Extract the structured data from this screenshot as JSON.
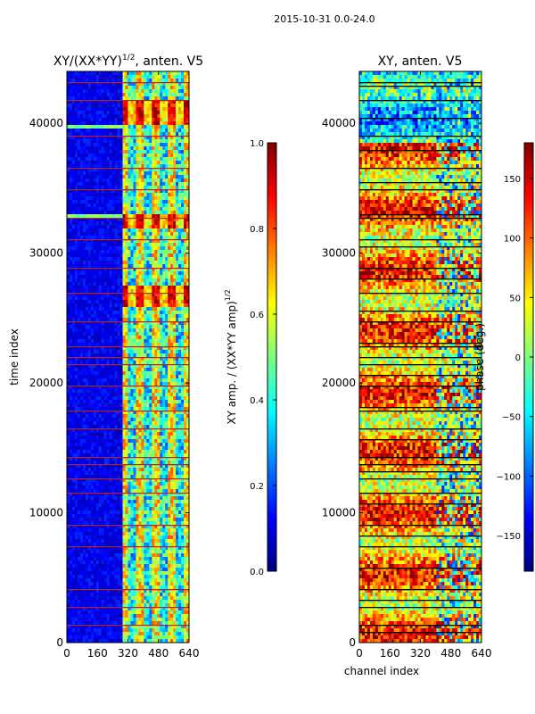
{
  "figure_title": "2015-10-31 0.0-24.0",
  "colors": {
    "jet": [
      "#00007f",
      "#0000ff",
      "#007fff",
      "#00ffff",
      "#7fff7f",
      "#ffff00",
      "#ff7f00",
      "#ff0000",
      "#7f0000"
    ],
    "frame": "#000000"
  },
  "chart_data": [
    {
      "type": "heatmap",
      "title": "XY/(XX*YY)$^{1/2}$, anten. V5",
      "title_parts": {
        "base": "XY/(XX*YY)",
        "sup": "1/2",
        "tail": ", anten. V5"
      },
      "xlabel": "",
      "ylabel": "time index",
      "xlim": [
        0,
        640
      ],
      "ylim": [
        0,
        44000
      ],
      "xticks": [
        "0",
        "160",
        "320",
        "480",
        "640"
      ],
      "yticks": [
        "0",
        "10000",
        "20000",
        "30000",
        "40000"
      ],
      "colorbar": {
        "label": "XY amp. / (XX*YY amp)$^{1/2}$",
        "label_parts": {
          "base": "XY amp. / (XX*YY amp)",
          "sup": "1/2"
        },
        "range": [
          0.0,
          1.0
        ],
        "ticks": [
          "0.0",
          "0.2",
          "0.4",
          "0.6",
          "0.8",
          "1.0"
        ]
      }
    },
    {
      "type": "heatmap",
      "title": "XY, anten. V5",
      "xlabel": "channel index",
      "ylabel": "",
      "xlim": [
        0,
        640
      ],
      "ylim": [
        0,
        44000
      ],
      "xticks": [
        "0",
        "160",
        "320",
        "480",
        "640"
      ],
      "yticks": [
        "0",
        "10000",
        "20000",
        "30000",
        "40000"
      ],
      "colorbar": {
        "label": "phase (deg.)",
        "range": [
          -180,
          180
        ],
        "ticks": [
          "−150",
          "−100",
          "−50",
          "0",
          "50",
          "100",
          "150"
        ]
      }
    }
  ]
}
